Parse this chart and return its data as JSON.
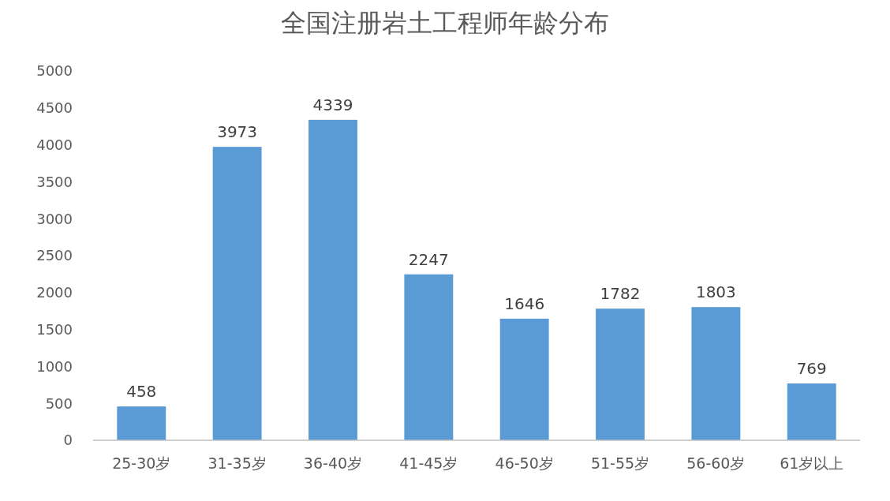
{
  "chart_data": {
    "type": "bar",
    "title": "全国注册岩土工程师年龄分布",
    "categories": [
      "25-30岁",
      "31-35岁",
      "36-40岁",
      "41-45岁",
      "46-50岁",
      "51-55岁",
      "56-60岁",
      "61岁以上"
    ],
    "values": [
      458,
      3973,
      4339,
      2247,
      1646,
      1782,
      1803,
      769
    ],
    "color": "#5b9bd5",
    "ylim": [
      0,
      5000
    ],
    "yticks": [
      0,
      500,
      1000,
      1500,
      2000,
      2500,
      3000,
      3500,
      4000,
      4500,
      5000
    ],
    "grid": false,
    "data_labels": true
  }
}
